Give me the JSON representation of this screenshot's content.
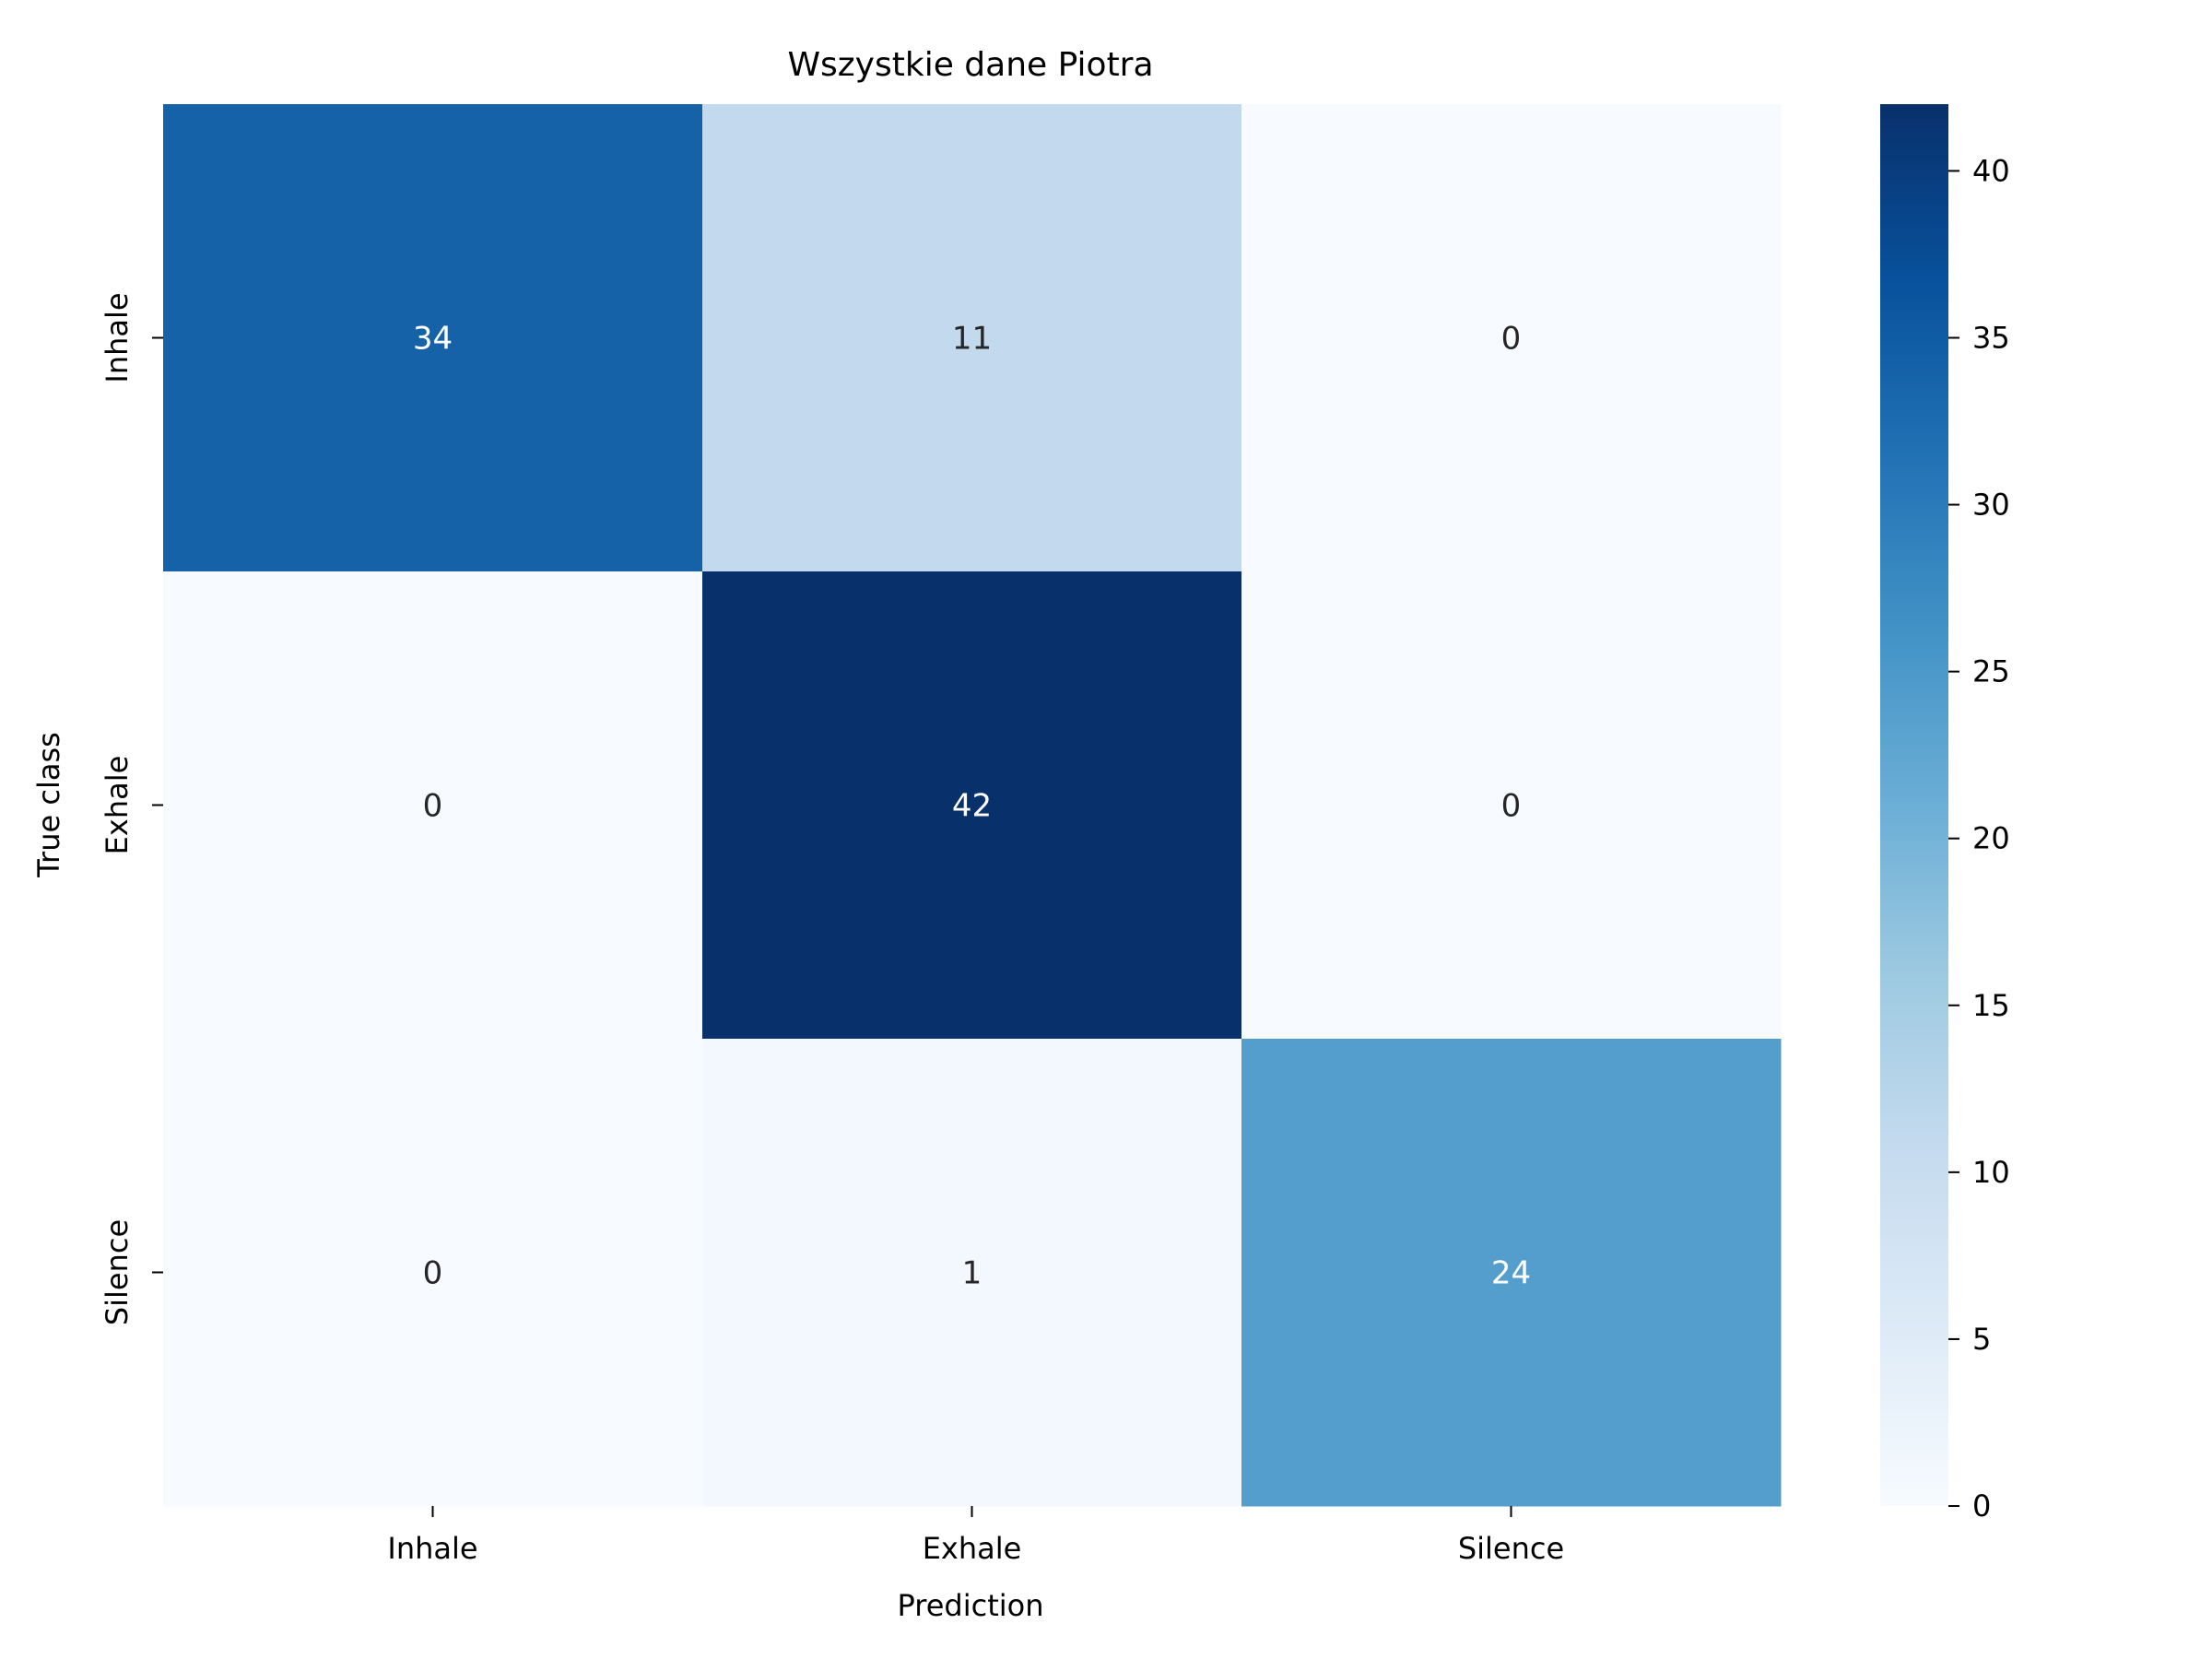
{
  "chart_data": {
    "type": "heatmap",
    "title": "Wszystkie dane Piotra",
    "xlabel": "Prediction",
    "ylabel": "True class",
    "x_categories": [
      "Inhale",
      "Exhale",
      "Silence"
    ],
    "y_categories": [
      "Inhale",
      "Exhale",
      "Silence"
    ],
    "values": [
      [
        34,
        11,
        0
      ],
      [
        0,
        42,
        0
      ],
      [
        0,
        1,
        24
      ]
    ],
    "colormap": "Blues",
    "vmin": 0,
    "vmax": 42,
    "colorbar_ticks": [
      0,
      5,
      10,
      15,
      20,
      25,
      30,
      35,
      40
    ],
    "colorbar_tick_labels": [
      "0",
      "5",
      "10",
      "15",
      "20",
      "25",
      "30",
      "35",
      "40"
    ]
  }
}
